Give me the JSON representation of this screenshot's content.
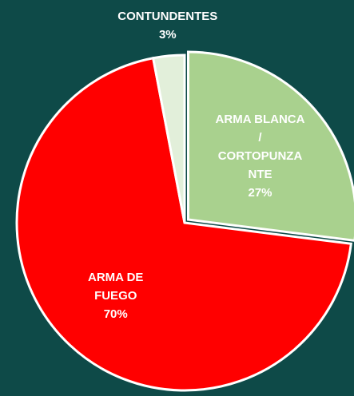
{
  "chart_data": {
    "type": "pie",
    "categories": [
      "ARMA BLANCA / CORTOPUNZANTE",
      "ARMA DE FUEGO",
      "CONTUNDENTES"
    ],
    "values": [
      27,
      70,
      3
    ],
    "value_labels": [
      "27%",
      "70%",
      "3%"
    ],
    "colors": [
      "#a9d18e",
      "#ff0000",
      "#e2efda"
    ]
  }
}
